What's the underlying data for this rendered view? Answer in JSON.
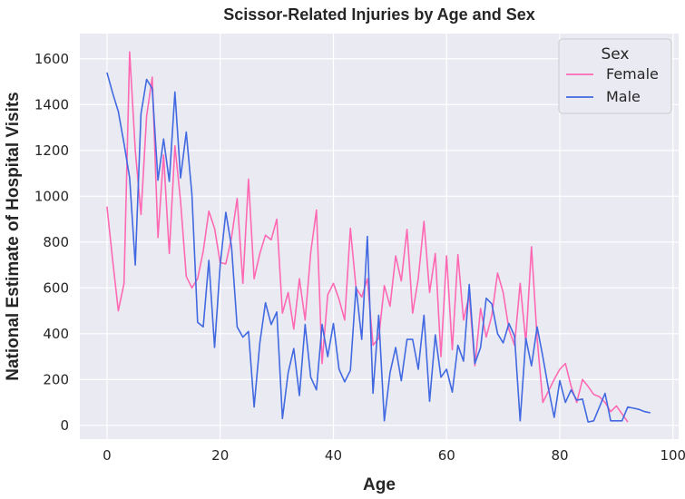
{
  "chart_data": {
    "type": "line",
    "title": "Scissor-Related Injuries by Age and Sex",
    "xlabel": "Age",
    "ylabel": "National Estimate of Hospital Visits",
    "xlim": [
      -4.8,
      101
    ],
    "ylim": [
      -60,
      1710
    ],
    "xticks": [
      0,
      20,
      40,
      60,
      80,
      100
    ],
    "yticks": [
      0,
      200,
      400,
      600,
      800,
      1000,
      1200,
      1400,
      1600
    ],
    "grid": true,
    "background": "#eaeaf2",
    "legend": {
      "title": "Sex",
      "position": "top-right"
    },
    "series": [
      {
        "name": "Female",
        "color": "#ff69b4",
        "x": [
          0,
          1,
          2,
          3,
          4,
          5,
          6,
          7,
          8,
          9,
          10,
          11,
          12,
          13,
          14,
          15,
          16,
          17,
          18,
          19,
          20,
          21,
          22,
          23,
          24,
          25,
          26,
          27,
          28,
          29,
          30,
          31,
          32,
          33,
          34,
          35,
          36,
          37,
          38,
          39,
          40,
          41,
          42,
          43,
          44,
          45,
          46,
          47,
          48,
          49,
          50,
          51,
          52,
          53,
          54,
          55,
          56,
          57,
          58,
          59,
          60,
          61,
          62,
          63,
          64,
          65,
          66,
          67,
          68,
          69,
          70,
          71,
          72,
          73,
          74,
          75,
          76,
          77,
          78,
          79,
          80,
          81,
          82,
          83,
          84,
          85,
          86,
          87,
          88,
          89,
          90,
          91,
          92
        ],
        "y": [
          955,
          720,
          500,
          620,
          1630,
          1200,
          920,
          1350,
          1520,
          820,
          1180,
          750,
          1220,
          980,
          650,
          600,
          640,
          760,
          935,
          860,
          710,
          705,
          820,
          990,
          620,
          1075,
          640,
          750,
          830,
          810,
          900,
          490,
          580,
          420,
          640,
          460,
          755,
          940,
          270,
          570,
          620,
          550,
          460,
          860,
          600,
          560,
          640,
          350,
          380,
          610,
          520,
          740,
          630,
          855,
          490,
          640,
          890,
          580,
          750,
          300,
          740,
          330,
          745,
          460,
          570,
          260,
          510,
          385,
          480,
          665,
          580,
          420,
          350,
          620,
          360,
          780,
          380,
          100,
          150,
          200,
          245,
          270,
          170,
          100,
          200,
          170,
          135,
          125,
          100,
          60,
          85,
          50,
          15
        ]
      },
      {
        "name": "Male",
        "color": "#4169e1",
        "x": [
          0,
          1,
          2,
          3,
          4,
          5,
          6,
          7,
          8,
          9,
          10,
          11,
          12,
          13,
          14,
          15,
          16,
          17,
          18,
          19,
          20,
          21,
          22,
          23,
          24,
          25,
          26,
          27,
          28,
          29,
          30,
          31,
          32,
          33,
          34,
          35,
          36,
          37,
          38,
          39,
          40,
          41,
          42,
          43,
          44,
          45,
          46,
          47,
          48,
          49,
          50,
          51,
          52,
          53,
          54,
          55,
          56,
          57,
          58,
          59,
          60,
          61,
          62,
          63,
          64,
          65,
          66,
          67,
          68,
          69,
          70,
          71,
          72,
          73,
          74,
          75,
          76,
          77,
          78,
          79,
          80,
          81,
          82,
          83,
          84,
          85,
          86,
          87,
          88,
          89,
          90,
          91,
          92,
          93,
          94,
          95,
          96
        ],
        "y": [
          1540,
          1450,
          1370,
          1230,
          1080,
          700,
          1360,
          1510,
          1470,
          1070,
          1250,
          1065,
          1455,
          1080,
          1280,
          1010,
          450,
          430,
          720,
          340,
          700,
          930,
          780,
          430,
          385,
          410,
          80,
          360,
          535,
          440,
          495,
          30,
          230,
          335,
          130,
          440,
          210,
          155,
          440,
          300,
          445,
          245,
          190,
          240,
          605,
          375,
          825,
          140,
          480,
          20,
          230,
          340,
          195,
          375,
          375,
          245,
          480,
          105,
          395,
          210,
          245,
          145,
          350,
          280,
          615,
          270,
          340,
          555,
          530,
          400,
          360,
          445,
          390,
          20,
          380,
          260,
          430,
          300,
          160,
          35,
          195,
          100,
          155,
          110,
          115,
          15,
          20,
          80,
          140,
          20,
          20,
          20,
          80,
          75,
          70,
          60,
          55
        ]
      }
    ]
  }
}
